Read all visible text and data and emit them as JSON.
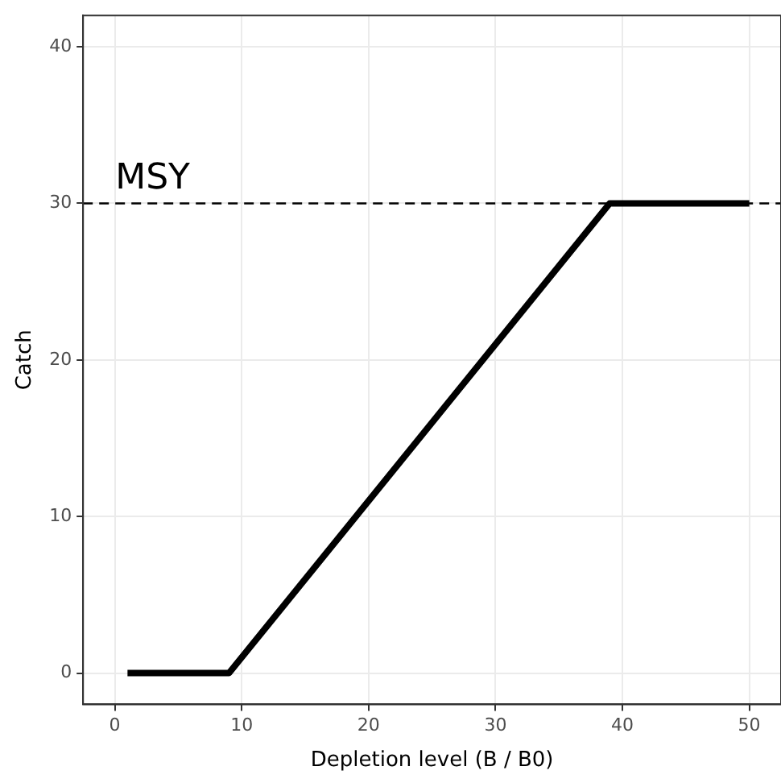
{
  "chart_data": {
    "type": "line",
    "xlabel": "Depletion level (B / B0)",
    "ylabel": "Catch",
    "series": [
      {
        "x": [
          1,
          9,
          39,
          50
        ],
        "values": [
          0,
          0,
          30,
          30
        ],
        "color": "#000000"
      }
    ],
    "xlim": [
      -2.5,
      52.5
    ],
    "xticks": [
      0,
      10,
      20,
      30,
      40,
      50
    ],
    "ylim": [
      -2,
      42
    ],
    "yticks": [
      0,
      10,
      20,
      30,
      40
    ],
    "grid": true,
    "legend": false,
    "marker": "none",
    "line_style": "solid",
    "ref_lines": [
      {
        "axis": "y",
        "value": 30,
        "label": "MSY",
        "color": "#000000",
        "line_style": "dashed"
      }
    ]
  }
}
